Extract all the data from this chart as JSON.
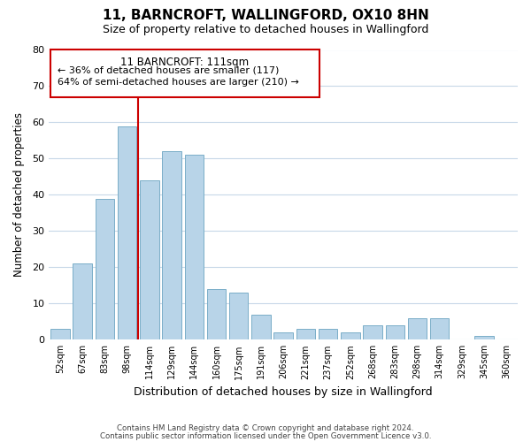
{
  "title": "11, BARNCROFT, WALLINGFORD, OX10 8HN",
  "subtitle": "Size of property relative to detached houses in Wallingford",
  "xlabel": "Distribution of detached houses by size in Wallingford",
  "ylabel": "Number of detached properties",
  "categories": [
    "52sqm",
    "67sqm",
    "83sqm",
    "98sqm",
    "114sqm",
    "129sqm",
    "144sqm",
    "160sqm",
    "175sqm",
    "191sqm",
    "206sqm",
    "221sqm",
    "237sqm",
    "252sqm",
    "268sqm",
    "283sqm",
    "298sqm",
    "314sqm",
    "329sqm",
    "345sqm",
    "360sqm"
  ],
  "values": [
    3,
    21,
    39,
    59,
    44,
    52,
    51,
    14,
    13,
    7,
    2,
    3,
    3,
    2,
    4,
    4,
    6,
    6,
    0,
    1,
    0
  ],
  "bar_color": "#b8d4e8",
  "bar_edgecolor": "#7aaec8",
  "ylim": [
    0,
    80
  ],
  "yticks": [
    0,
    10,
    20,
    30,
    40,
    50,
    60,
    70,
    80
  ],
  "vline_x": 3.5,
  "vline_color": "#cc0000",
  "annotation_title": "11 BARNCROFT: 111sqm",
  "annotation_line1": "← 36% of detached houses are smaller (117)",
  "annotation_line2": "64% of semi-detached houses are larger (210) →",
  "footer1": "Contains HM Land Registry data © Crown copyright and database right 2024.",
  "footer2": "Contains public sector information licensed under the Open Government Licence v3.0.",
  "background_color": "#ffffff",
  "grid_color": "#c8d8e8"
}
